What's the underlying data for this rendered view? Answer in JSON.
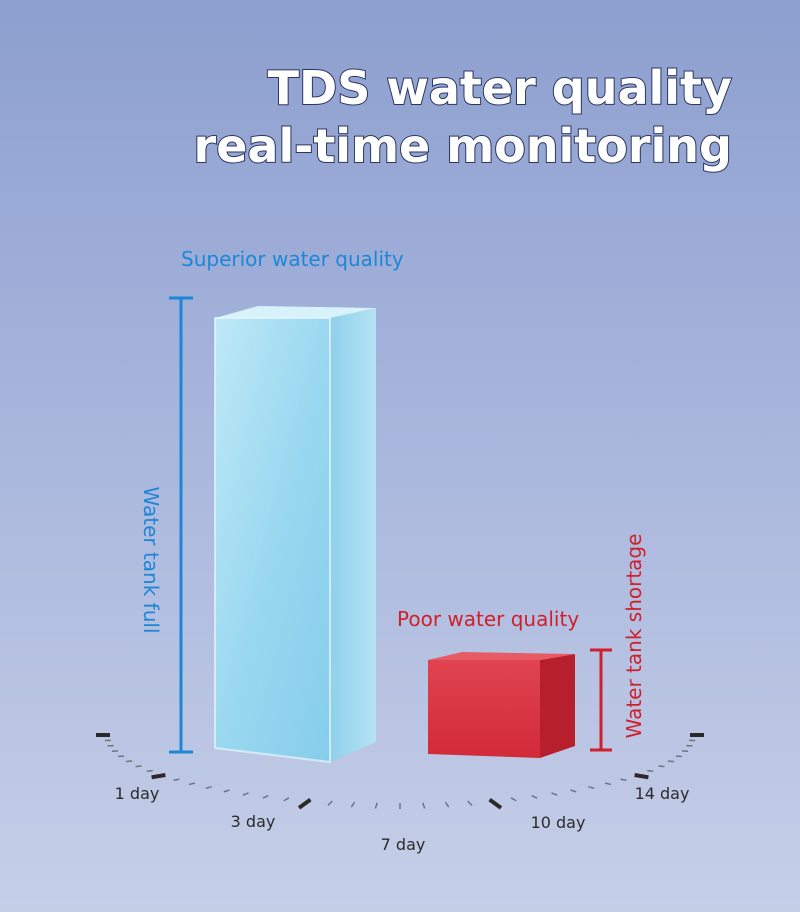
{
  "title": {
    "line1": "TDS water quality",
    "line2": "real-time monitoring"
  },
  "labels": {
    "superior": "Superior water quality",
    "tank_full": "Water tank full",
    "poor": "Poor water quality",
    "tank_shortage": "Water tank shortage"
  },
  "dial": {
    "days": [
      "1 day",
      "3 day",
      "7 day",
      "10 day",
      "14 day"
    ]
  }
}
